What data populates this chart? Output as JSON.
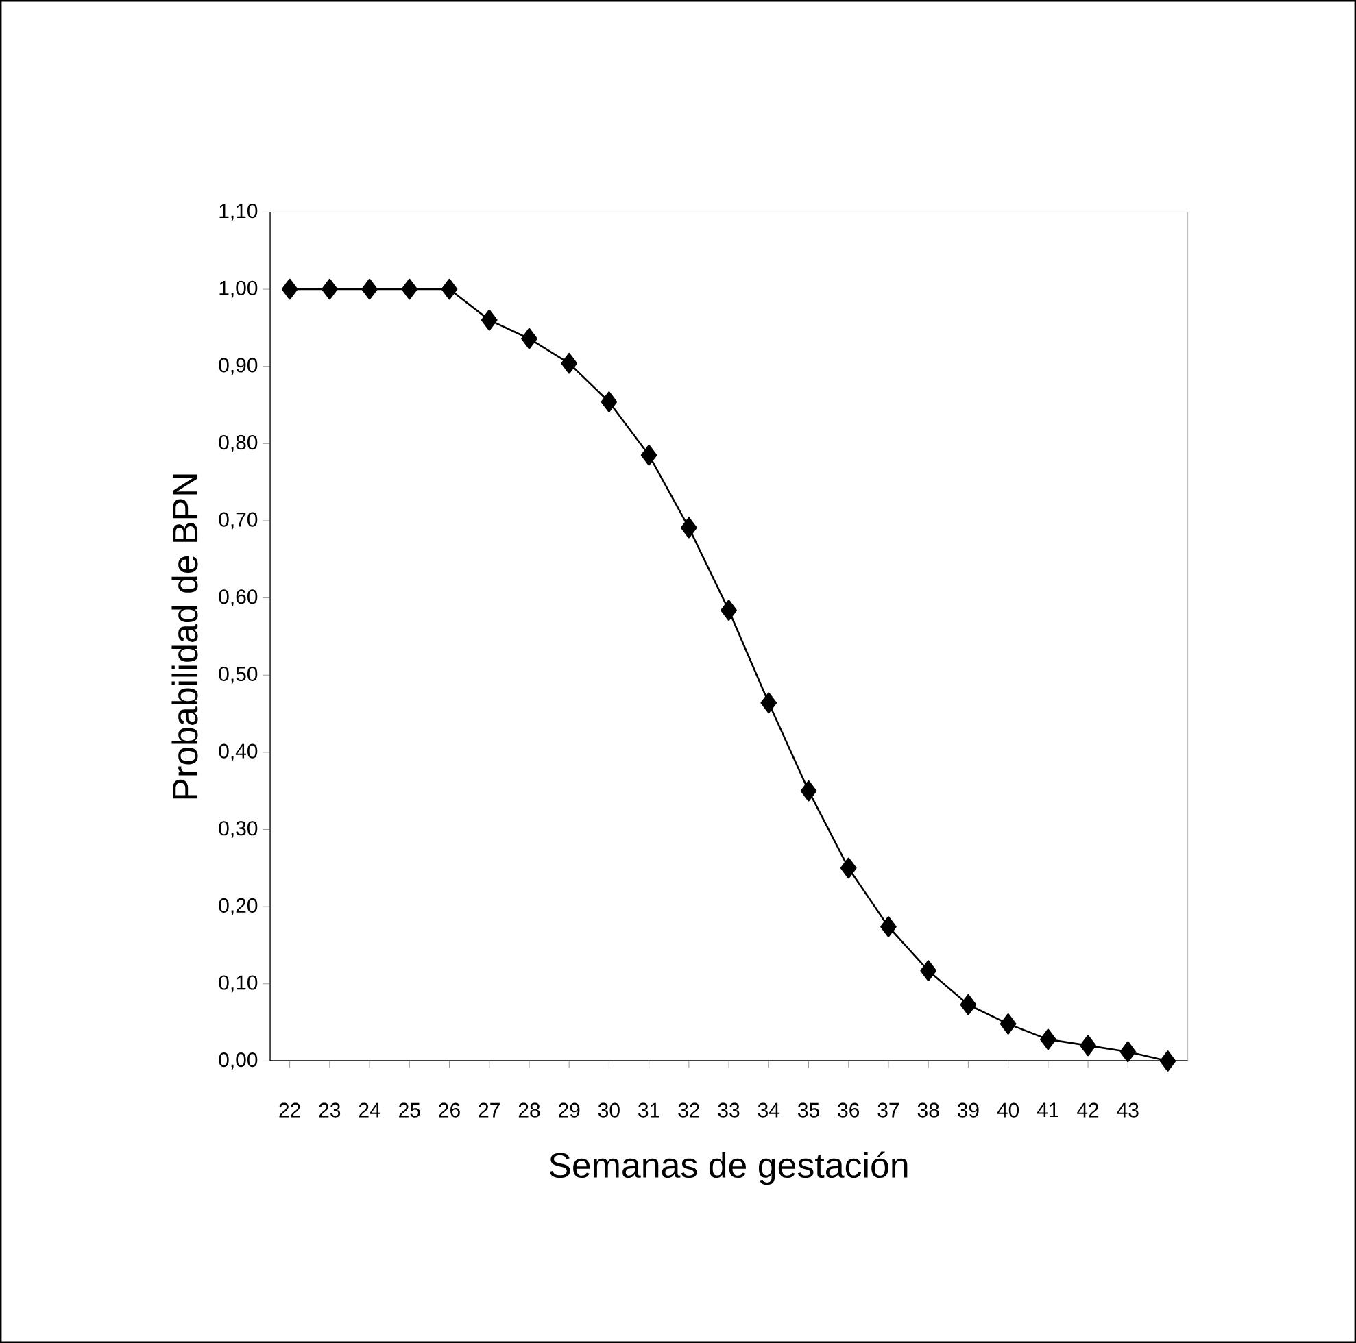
{
  "chart_data": {
    "type": "line",
    "xlabel": "Semanas de gestación",
    "ylabel": "Probabilidad de BPN",
    "categories": [
      "22",
      "23",
      "24",
      "25",
      "26",
      "27",
      "28",
      "29",
      "30",
      "31",
      "32",
      "33",
      "34",
      "35",
      "36",
      "37",
      "38",
      "39",
      "40",
      "41",
      "42",
      "43",
      null
    ],
    "series": [
      {
        "color": "#000000",
        "values": [
          1.0,
          1.0,
          1.0,
          1.0,
          1.0,
          0.96,
          0.936,
          0.904,
          0.854,
          0.785,
          0.691,
          0.584,
          0.464,
          0.35,
          0.25,
          0.174,
          0.117,
          0.073,
          0.048,
          0.028,
          0.02,
          0.012,
          0.0
        ]
      }
    ],
    "ylim": [
      0,
      1.1
    ],
    "yticks": [
      {
        "value": 0,
        "label": "0,00"
      },
      {
        "value": 0.1,
        "label": "0,10"
      },
      {
        "value": 0.2,
        "label": "0,20"
      },
      {
        "value": 0.3,
        "label": "0,30"
      },
      {
        "value": 0.4,
        "label": "0,40"
      },
      {
        "value": 0.5,
        "label": "0,50"
      },
      {
        "value": 0.6,
        "label": "0,60"
      },
      {
        "value": 0.7,
        "label": "0,70"
      },
      {
        "value": 0.8,
        "label": "0,80"
      },
      {
        "value": 0.9,
        "label": "0,90"
      },
      {
        "value": 1.0,
        "label": "1,00"
      },
      {
        "value": 1.1,
        "label": "1,10"
      }
    ],
    "grid": false,
    "marker": "diamond",
    "line_style": "solid"
  }
}
